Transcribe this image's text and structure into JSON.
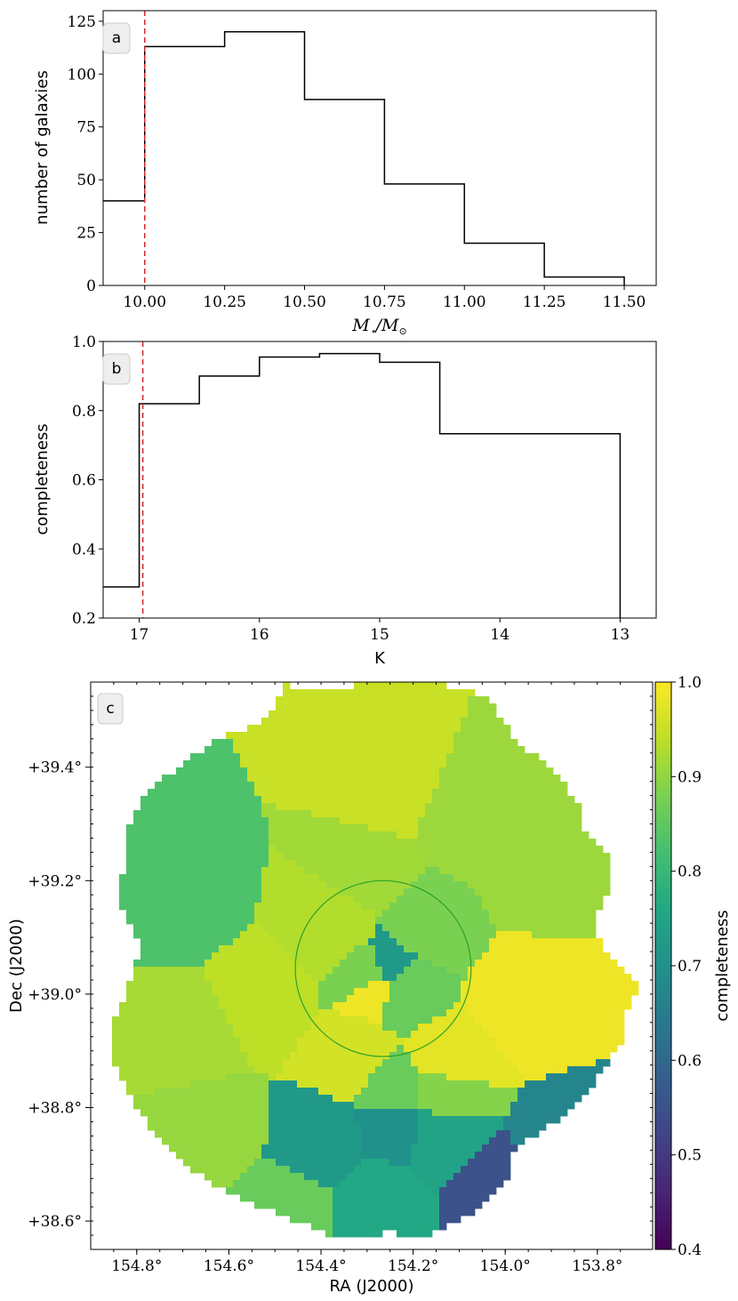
{
  "chart_data": [
    {
      "type": "step",
      "panel": "a",
      "xlabel": "M_⋆/M_⊙",
      "ylabel": "number of galaxies",
      "xlim": [
        9.87,
        11.6
      ],
      "ylim": [
        0,
        130
      ],
      "x_ticks": [
        "10.00",
        "10.25",
        "10.50",
        "10.75",
        "11.00",
        "11.25",
        "11.50"
      ],
      "y_ticks": [
        "0",
        "25",
        "50",
        "75",
        "100",
        "125"
      ],
      "bin_edges": [
        9.75,
        10.0,
        10.25,
        10.5,
        10.75,
        11.0,
        11.25,
        11.5
      ],
      "values": [
        40,
        113,
        120,
        88,
        48,
        20,
        4
      ],
      "cutoff_line": {
        "x": 10.0,
        "color": "#d62728"
      }
    },
    {
      "type": "step",
      "panel": "b",
      "xlabel": "K",
      "ylabel": "completeness",
      "xlim": [
        17.3,
        12.7
      ],
      "ylim": [
        0.2,
        1.0
      ],
      "x_ticks": [
        "17",
        "16",
        "15",
        "14",
        "13"
      ],
      "y_ticks": [
        "0.2",
        "0.4",
        "0.6",
        "0.8",
        "1.0"
      ],
      "bin_edges": [
        17.5,
        17.0,
        16.5,
        16.0,
        15.5,
        15.0,
        14.5,
        13.0
      ],
      "values": [
        0.29,
        0.82,
        0.9,
        0.955,
        0.965,
        0.94,
        0.733
      ],
      "cutoff_line": {
        "x": 16.97,
        "color": "#d62728"
      }
    },
    {
      "type": "heatmap",
      "panel": "c",
      "xlabel": "RA (J2000)",
      "ylabel": "Dec (J2000)",
      "xlim": [
        154.9,
        153.68
      ],
      "ylim": [
        38.55,
        39.55
      ],
      "x_ticks": [
        "154.8°",
        "154.6°",
        "154.4°",
        "154.2°",
        "154.0°",
        "153.8°"
      ],
      "y_ticks": [
        "+38.6°",
        "+38.8°",
        "+39.0°",
        "+39.2°",
        "+39.4°"
      ],
      "colorbar": {
        "label": "completeness",
        "range": [
          0.4,
          1.0
        ],
        "ticks": [
          "0.4",
          "0.5",
          "0.6",
          "0.7",
          "0.8",
          "0.9",
          "1.0"
        ],
        "colormap": "viridis"
      },
      "circle": {
        "ra": 154.265,
        "dec": 39.045,
        "radius_deg_dec": 0.155,
        "color": "#2ca02c"
      },
      "regions": [
        {
          "ra": 154.7,
          "dec": 39.17,
          "value": 0.83
        },
        {
          "ra": 154.26,
          "dec": 39.36,
          "value": 0.95
        },
        {
          "ra": 154.08,
          "dec": 39.3,
          "value": 0.91
        },
        {
          "ra": 153.95,
          "dec": 39.22,
          "value": 0.91
        },
        {
          "ra": 154.3,
          "dec": 39.22,
          "value": 0.915
        },
        {
          "ra": 154.17,
          "dec": 39.12,
          "value": 0.88
        },
        {
          "ra": 154.38,
          "dec": 39.12,
          "value": 0.93
        },
        {
          "ra": 154.53,
          "dec": 38.99,
          "value": 0.94
        },
        {
          "ra": 154.68,
          "dec": 38.93,
          "value": 0.92
        },
        {
          "ra": 154.28,
          "dec": 39.02,
          "value": 0.985
        },
        {
          "ra": 153.96,
          "dec": 38.99,
          "value": 0.985
        },
        {
          "ra": 154.33,
          "dec": 38.89,
          "value": 0.96
        },
        {
          "ra": 154.13,
          "dec": 38.88,
          "value": 0.975
        },
        {
          "ra": 154.64,
          "dec": 38.76,
          "value": 0.905
        },
        {
          "ra": 154.4,
          "dec": 38.74,
          "value": 0.72
        },
        {
          "ra": 154.235,
          "dec": 38.765,
          "value": 0.7
        },
        {
          "ra": 154.15,
          "dec": 38.75,
          "value": 0.745
        },
        {
          "ra": 153.87,
          "dec": 38.72,
          "value": 0.67
        },
        {
          "ra": 154.02,
          "dec": 38.65,
          "value": 0.55
        },
        {
          "ra": 154.27,
          "dec": 38.64,
          "value": 0.76
        },
        {
          "ra": 154.48,
          "dec": 38.62,
          "value": 0.86
        },
        {
          "ra": 154.24,
          "dec": 38.83,
          "value": 0.86
        },
        {
          "ra": 154.14,
          "dec": 38.83,
          "value": 0.89
        },
        {
          "ra": 154.255,
          "dec": 39.035,
          "value": 0.72
        },
        {
          "ra": 154.225,
          "dec": 39.01,
          "value": 0.86
        },
        {
          "ra": 154.285,
          "dec": 39.027,
          "value": 0.88
        }
      ]
    }
  ],
  "panels": {
    "a": {
      "letter": "a",
      "ylabel": "number of galaxies",
      "xlabel_main": "M",
      "xlabel_sub1": "⋆",
      "xlabel_slash": "/M",
      "xlabel_sub2": "⊙"
    },
    "b": {
      "letter": "b",
      "ylabel": "completeness",
      "xlabel": "K"
    },
    "c": {
      "letter": "c",
      "ylabel": "Dec (J2000)",
      "xlabel": "RA (J2000)",
      "cbar_label": "completeness"
    }
  },
  "colors": {
    "step_line": "#000000",
    "cutoff": "#d62728",
    "circle": "#2ca02c"
  }
}
